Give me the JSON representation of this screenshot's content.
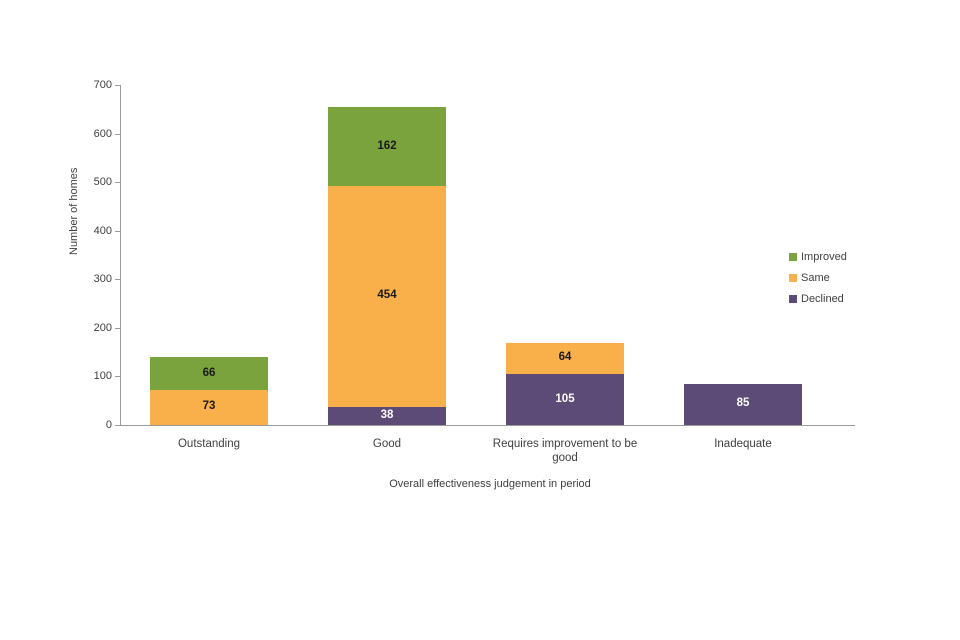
{
  "chart_data": {
    "type": "bar",
    "stacked": true,
    "title": "",
    "categories": [
      "Outstanding",
      "Good",
      "Requires improvement to be good",
      "Inadequate"
    ],
    "series": [
      {
        "name": "Improved",
        "color": "#7ba33d",
        "label_color": "#1a1a1a",
        "values": [
          66,
          162,
          0,
          0
        ]
      },
      {
        "name": "Same",
        "color": "#f9b04b",
        "label_color": "#1a1a1a",
        "values": [
          73,
          454,
          64,
          0
        ]
      },
      {
        "name": "Declined",
        "color": "#5c4a77",
        "label_color": "#ffffff",
        "values": [
          0,
          38,
          105,
          85
        ]
      }
    ],
    "stack_order_bottom_to_top": [
      "Declined",
      "Same",
      "Improved"
    ],
    "xlabel": "Overall effectiveness judgement in period",
    "ylabel": "Number of homes",
    "ylim": [
      0,
      700
    ],
    "ytick_step": 100,
    "ytick_labels": [
      "0",
      "100",
      "200",
      "300",
      "400",
      "500",
      "600",
      "700"
    ],
    "grid": false,
    "legend_position": "right",
    "legend_entries": [
      "Improved",
      "Same",
      "Declined"
    ]
  }
}
